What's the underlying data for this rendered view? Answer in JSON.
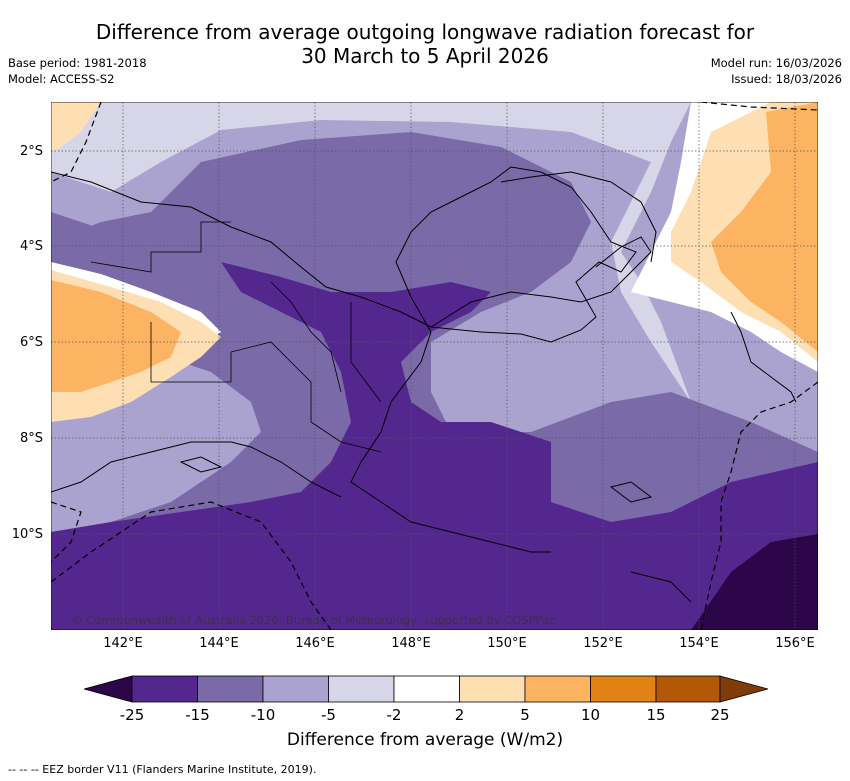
{
  "title": {
    "line1": "Difference from average outgoing longwave radiation forecast for",
    "line2": "30 March to 5 April 2026"
  },
  "meta": {
    "base_period": "Base period: 1981-2018",
    "model": "Model: ACCESS-S2",
    "model_run": "Model run: 16/03/2026",
    "issued": "Issued: 18/03/2026"
  },
  "map": {
    "region": "Papua New Guinea",
    "lat_labels": [
      "2°S",
      "4°S",
      "6°S",
      "8°S",
      "10°S"
    ],
    "lon_labels": [
      "142°E",
      "144°E",
      "146°E",
      "148°E",
      "150°E",
      "152°E",
      "154°E",
      "156°E"
    ],
    "copyright": "© Commonwealth of Australia 2026, Bureau of Meteorology, supported by COSPPac"
  },
  "colorbar": {
    "title": "Difference from average (W/m2)",
    "tick_labels": [
      "-25",
      "-15",
      "-10",
      "-5",
      "-2",
      "2",
      "5",
      "10",
      "15",
      "25"
    ],
    "colors": {
      "lt_-25": "#2c0648",
      "-25_-15": "#54278f",
      "-15_-10": "#7a6aa8",
      "-10_-5": "#aba3cf",
      "-5_-2": "#d7d6e8",
      "-2_2": "#ffffff",
      "2_5": "#fedfb3",
      "5_10": "#fdb462",
      "10_15": "#e08214",
      "15_25": "#b35806",
      "gt_25": "#7f3b08"
    }
  },
  "footer": {
    "legend": "-- -- -- EEZ border V11 (Flanders Marine Institute, 2019)."
  }
}
